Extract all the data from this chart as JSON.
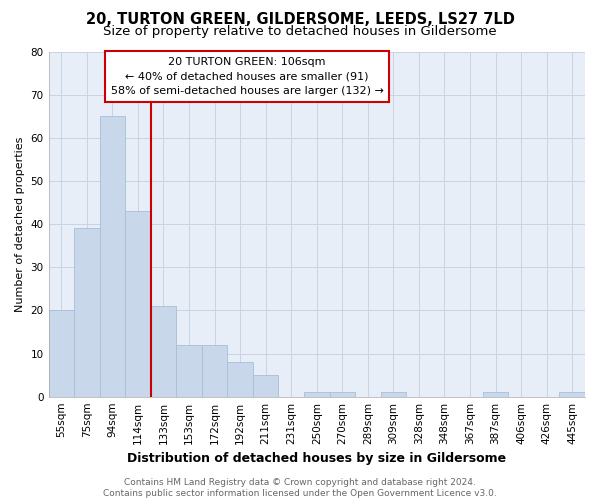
{
  "title1": "20, TURTON GREEN, GILDERSOME, LEEDS, LS27 7LD",
  "title2": "Size of property relative to detached houses in Gildersome",
  "xlabel": "Distribution of detached houses by size in Gildersome",
  "ylabel": "Number of detached properties",
  "categories": [
    "55sqm",
    "75sqm",
    "94sqm",
    "114sqm",
    "133sqm",
    "153sqm",
    "172sqm",
    "192sqm",
    "211sqm",
    "231sqm",
    "250sqm",
    "270sqm",
    "289sqm",
    "309sqm",
    "328sqm",
    "348sqm",
    "367sqm",
    "387sqm",
    "406sqm",
    "426sqm",
    "445sqm"
  ],
  "values": [
    20,
    39,
    65,
    43,
    21,
    12,
    12,
    8,
    5,
    0,
    1,
    1,
    0,
    1,
    0,
    0,
    0,
    1,
    0,
    0,
    1
  ],
  "bar_color": "#c8d8ea",
  "bar_edge_color": "#a8bfd8",
  "vline_x": 3.5,
  "vline_color": "#cc0000",
  "annotation_line1": "20 TURTON GREEN: 106sqm",
  "annotation_line2": "← 40% of detached houses are smaller (91)",
  "annotation_line3": "58% of semi-detached houses are larger (132) →",
  "annotation_box_facecolor": "#ffffff",
  "annotation_box_edgecolor": "#cc0000",
  "ylim": [
    0,
    80
  ],
  "yticks": [
    0,
    10,
    20,
    30,
    40,
    50,
    60,
    70,
    80
  ],
  "grid_color": "#c8d4e4",
  "plot_bg_color": "#e8eef8",
  "fig_bg_color": "#ffffff",
  "footer_text": "Contains HM Land Registry data © Crown copyright and database right 2024.\nContains public sector information licensed under the Open Government Licence v3.0.",
  "title1_fontsize": 10.5,
  "title2_fontsize": 9.5,
  "xlabel_fontsize": 9,
  "ylabel_fontsize": 8,
  "tick_fontsize": 7.5,
  "annotation_fontsize": 8,
  "footer_fontsize": 6.5
}
